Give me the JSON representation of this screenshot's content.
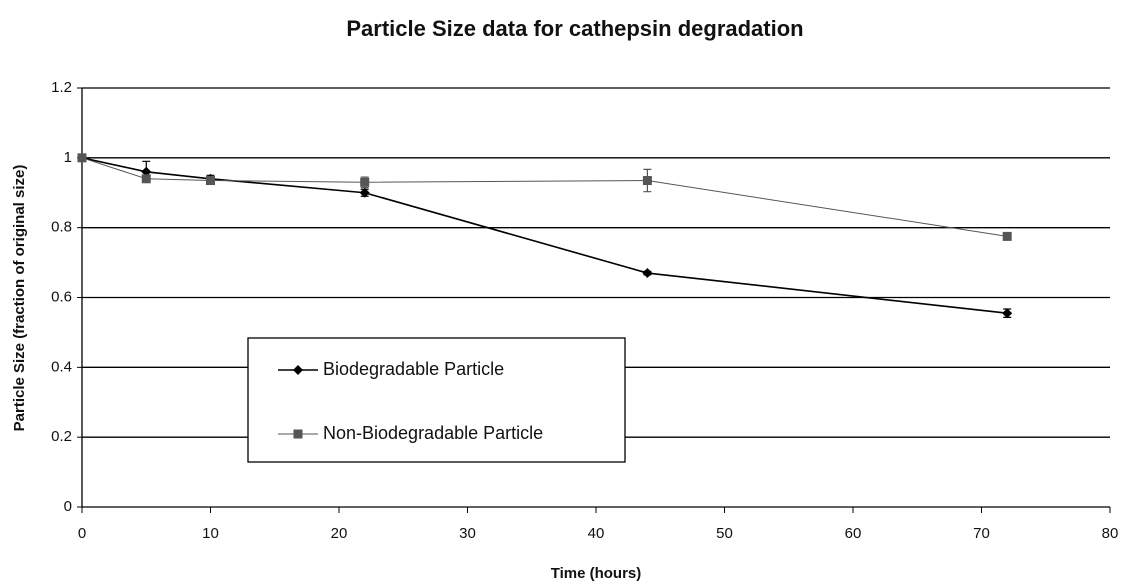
{
  "chart_data": {
    "type": "line",
    "title": "Particle Size data for cathepsin degradation",
    "x_label": "Time (hours)",
    "y_label": "Particle Size (fraction of original size)",
    "x": [
      0,
      5,
      10,
      22,
      44,
      72
    ],
    "series": [
      {
        "name": "Biodegradable Particle",
        "color": "#000000",
        "marker": "diamond",
        "values": [
          1.0,
          0.96,
          0.94,
          0.9,
          0.67,
          0.555
        ],
        "errors": [
          0.005,
          0.03,
          0.01,
          0.01,
          0.005,
          0.012
        ]
      },
      {
        "name": "Non-Biodegradable Particle",
        "color": "#555555",
        "marker": "square",
        "values": [
          1.0,
          0.94,
          0.935,
          0.93,
          0.935,
          0.775
        ],
        "errors": [
          0.005,
          0.01,
          0.01,
          0.015,
          0.032,
          0.01
        ]
      }
    ],
    "xlim": [
      0,
      80
    ],
    "xticks": [
      0,
      10,
      20,
      30,
      40,
      50,
      60,
      70,
      80
    ],
    "ylim": [
      0,
      1.2
    ],
    "yticks": [
      0,
      0.2,
      0.4,
      0.6,
      0.8,
      1,
      1.2
    ],
    "grid": true,
    "legend": "lower left"
  }
}
